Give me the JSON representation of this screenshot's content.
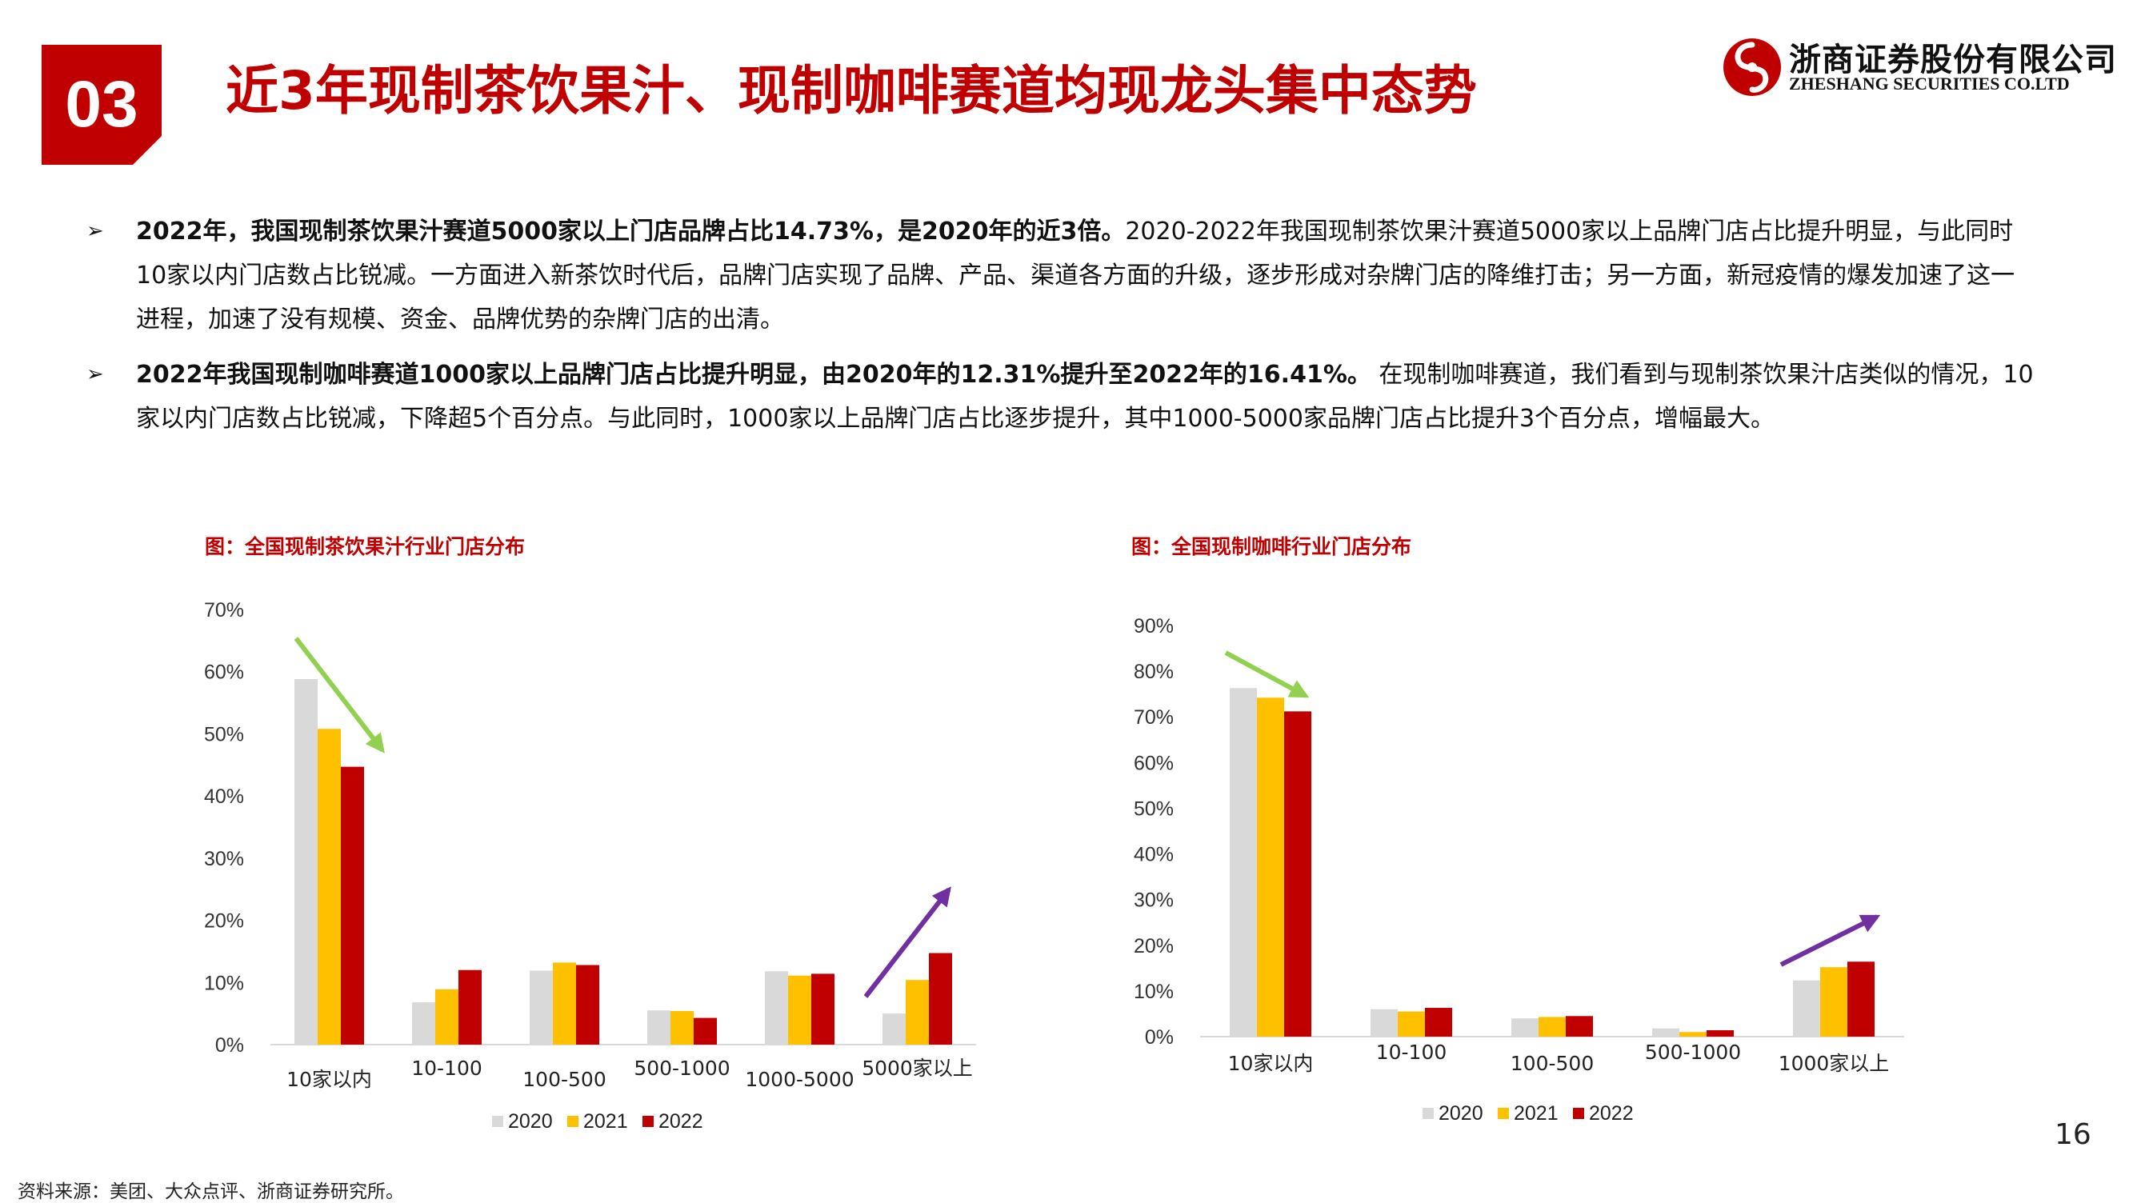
{
  "section": {
    "number": "03"
  },
  "title": "近3年现制茶饮果汁、现制咖啡赛道均现龙头集中态势",
  "logo": {
    "cn": "浙商证券股份有限公司",
    "en": "ZHESHANG SECURITIES CO.LTD"
  },
  "bullets": [
    {
      "marker": "➢",
      "bold": "2022年，我国现制茶饮果汁赛道5000家以上门店品牌占比14.73%，是2020年的近3倍。",
      "text": "2020-2022年我国现制茶饮果汁赛道5000家以上品牌门店占比提升明显，与此同时10家以内门店数占比锐减。一方面进入新茶饮时代后，品牌门店实现了品牌、产品、渠道各方面的升级，逐步形成对杂牌门店的降维打击；另一方面，新冠疫情的爆发加速了这一进程，加速了没有规模、资金、品牌优势的杂牌门店的出清。"
    },
    {
      "marker": "➢",
      "bold": "2022年我国现制咖啡赛道1000家以上品牌门店占比提升明显，由2020年的12.31%提升至2022年的16.41%。",
      "text": " 在现制咖啡赛道，我们看到与现制茶饮果汁店类似的情况，10家以内门店数占比锐减，下降超5个百分点。与此同时，1000家以上品牌门店占比逐步提升，其中1000-5000家品牌门店占比提升3个百分点，增幅最大。"
    }
  ],
  "colors": {
    "y2020": "#d9d9d9",
    "y2021": "#ffc000",
    "y2022": "#c00000",
    "accent": "#c00000",
    "arrow_down": "#92d050",
    "arrow_up": "#7030a0"
  },
  "chart_data": [
    {
      "type": "bar",
      "title": "图：全国现制茶饮果汁行业门店分布",
      "categories": [
        "10家以内",
        "10-100",
        "100-500",
        "500-1000",
        "1000-5000",
        "5000家以上"
      ],
      "series": [
        {
          "name": "2020",
          "values": [
            58.8,
            6.8,
            11.9,
            5.5,
            11.8,
            5.0
          ]
        },
        {
          "name": "2021",
          "values": [
            50.8,
            8.9,
            13.2,
            5.4,
            11.1,
            10.4
          ]
        },
        {
          "name": "2022",
          "values": [
            44.7,
            12.0,
            12.8,
            4.3,
            11.4,
            14.73
          ]
        }
      ],
      "ylim": [
        0,
        70
      ],
      "yticks": [
        "0%",
        "10%",
        "20%",
        "30%",
        "40%",
        "50%",
        "60%",
        "70%"
      ],
      "grid": false,
      "legend": "bottom"
    },
    {
      "type": "bar",
      "title": "图：全国现制咖啡行业门店分布",
      "categories": [
        "10家以内",
        "10-100",
        "100-500",
        "500-1000",
        "1000家以上"
      ],
      "series": [
        {
          "name": "2020",
          "values": [
            76.3,
            6.0,
            4.0,
            1.8,
            12.31
          ]
        },
        {
          "name": "2021",
          "values": [
            74.2,
            5.5,
            4.3,
            1.0,
            15.2
          ]
        },
        {
          "name": "2022",
          "values": [
            71.2,
            6.3,
            4.5,
            1.4,
            16.41
          ]
        }
      ],
      "ylim": [
        0,
        90
      ],
      "yticks": [
        "0%",
        "10%",
        "20%",
        "30%",
        "40%",
        "50%",
        "60%",
        "70%",
        "80%",
        "90%"
      ],
      "grid": false,
      "legend": "bottom"
    }
  ],
  "source": "资料来源：美团、大众点评、浙商证券研究所。",
  "page_number": "16"
}
